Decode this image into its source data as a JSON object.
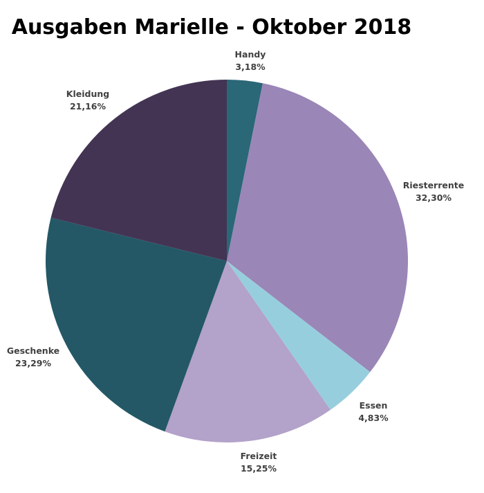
{
  "chart_data": {
    "type": "pie",
    "title": "Ausgaben Marielle - Oktober 2018",
    "start_angle_deg": 0,
    "direction": "clockwise",
    "legend": "none",
    "slices": [
      {
        "name": "Handy",
        "value": 3.18,
        "label": "3,18%",
        "color": "#2a6777"
      },
      {
        "name": "Riesterrente",
        "value": 32.3,
        "label": "32,30%",
        "color": "#9a86b7"
      },
      {
        "name": "Essen",
        "value": 4.83,
        "label": "4,83%",
        "color": "#97cedd"
      },
      {
        "name": "Freizeit",
        "value": 15.25,
        "label": "15,25%",
        "color": "#b3a2c9"
      },
      {
        "name": "Geschenke",
        "value": 23.29,
        "label": "23,29%",
        "color": "#245866"
      },
      {
        "name": "Kleidung",
        "value": 21.16,
        "label": "21,16%",
        "color": "#433454"
      }
    ]
  }
}
